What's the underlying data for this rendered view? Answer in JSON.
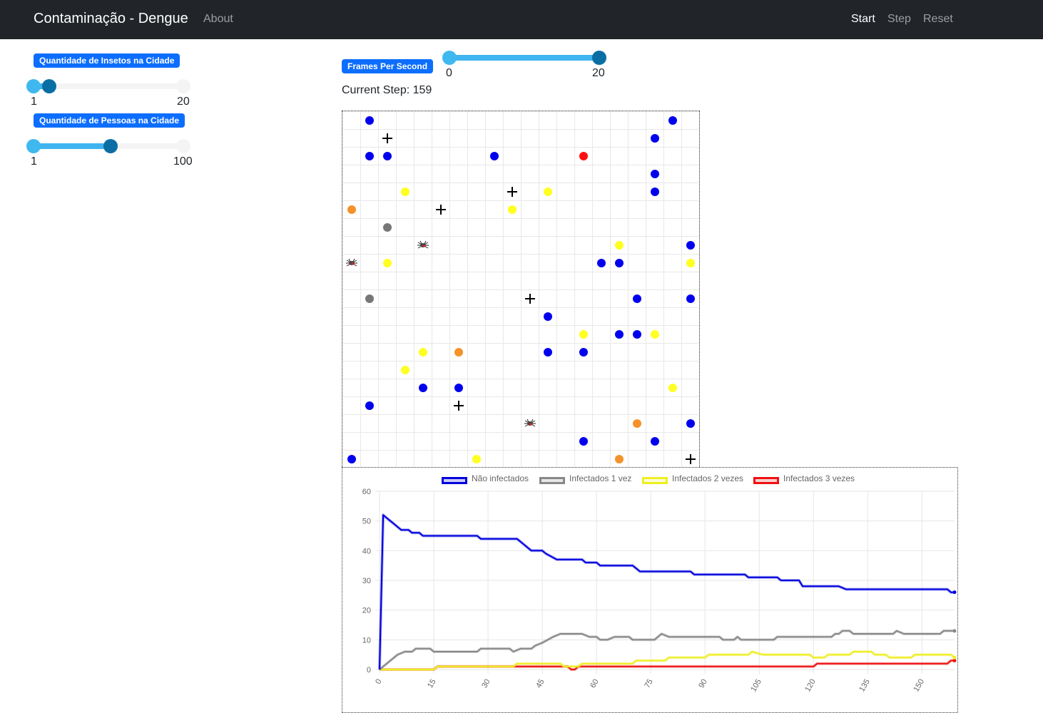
{
  "navbar": {
    "brand": "Contaminação - Dengue",
    "about": "About",
    "start": "Start",
    "step": "Step",
    "reset": "Reset"
  },
  "controls": {
    "insects": {
      "label": "Quantidade de Insetos na Cidade",
      "min": "1",
      "max": "20",
      "value": 2
    },
    "people": {
      "label": "Quantidade de Pessoas na Cidade",
      "min": "1",
      "max": "100",
      "value": 55
    },
    "fps": {
      "label": "Frames Per Second",
      "min": "0",
      "max": "20",
      "value_low": 0,
      "value_high": 20
    }
  },
  "status": {
    "current_step": "Current Step: 159"
  },
  "colors": {
    "healthy": "#0000ee",
    "infected1": "#777777",
    "infected2": "#ffff22",
    "infected3": "#ff1111",
    "recovered": "#f5922a",
    "accent": "#0d6efd"
  },
  "grid": {
    "size": 20,
    "people": [
      {
        "c": 1,
        "r": 0,
        "s": "healthy"
      },
      {
        "c": 18,
        "r": 0,
        "s": "healthy"
      },
      {
        "c": 17,
        "r": 1,
        "s": "healthy"
      },
      {
        "c": 1,
        "r": 2,
        "s": "healthy"
      },
      {
        "c": 2,
        "r": 2,
        "s": "healthy"
      },
      {
        "c": 8,
        "r": 2,
        "s": "healthy"
      },
      {
        "c": 13,
        "r": 2,
        "s": "infected3"
      },
      {
        "c": 17,
        "r": 3,
        "s": "healthy"
      },
      {
        "c": 3,
        "r": 4,
        "s": "infected2"
      },
      {
        "c": 11,
        "r": 4,
        "s": "infected2"
      },
      {
        "c": 17,
        "r": 4,
        "s": "healthy"
      },
      {
        "c": 0,
        "r": 5,
        "s": "recovered"
      },
      {
        "c": 9,
        "r": 5,
        "s": "infected2"
      },
      {
        "c": 2,
        "r": 6,
        "s": "infected1"
      },
      {
        "c": 15,
        "r": 7,
        "s": "infected2"
      },
      {
        "c": 19,
        "r": 7,
        "s": "healthy"
      },
      {
        "c": 2,
        "r": 8,
        "s": "infected2"
      },
      {
        "c": 14,
        "r": 8,
        "s": "healthy"
      },
      {
        "c": 15,
        "r": 8,
        "s": "healthy"
      },
      {
        "c": 19,
        "r": 8,
        "s": "infected2"
      },
      {
        "c": 1,
        "r": 10,
        "s": "infected1"
      },
      {
        "c": 16,
        "r": 10,
        "s": "healthy"
      },
      {
        "c": 19,
        "r": 10,
        "s": "healthy"
      },
      {
        "c": 11,
        "r": 11,
        "s": "healthy"
      },
      {
        "c": 13,
        "r": 12,
        "s": "infected2"
      },
      {
        "c": 15,
        "r": 12,
        "s": "healthy"
      },
      {
        "c": 16,
        "r": 12,
        "s": "healthy"
      },
      {
        "c": 17,
        "r": 12,
        "s": "infected2"
      },
      {
        "c": 4,
        "r": 13,
        "s": "infected2"
      },
      {
        "c": 6,
        "r": 13,
        "s": "recovered"
      },
      {
        "c": 11,
        "r": 13,
        "s": "healthy"
      },
      {
        "c": 13,
        "r": 13,
        "s": "healthy"
      },
      {
        "c": 3,
        "r": 14,
        "s": "infected2"
      },
      {
        "c": 4,
        "r": 15,
        "s": "healthy"
      },
      {
        "c": 6,
        "r": 15,
        "s": "healthy"
      },
      {
        "c": 18,
        "r": 15,
        "s": "infected2"
      },
      {
        "c": 1,
        "r": 16,
        "s": "healthy"
      },
      {
        "c": 16,
        "r": 17,
        "s": "recovered"
      },
      {
        "c": 19,
        "r": 17,
        "s": "healthy"
      },
      {
        "c": 13,
        "r": 18,
        "s": "healthy"
      },
      {
        "c": 17,
        "r": 18,
        "s": "healthy"
      },
      {
        "c": 0,
        "r": 19,
        "s": "healthy"
      },
      {
        "c": 7,
        "r": 19,
        "s": "infected2"
      },
      {
        "c": 15,
        "r": 19,
        "s": "recovered"
      }
    ],
    "crosses": [
      {
        "c": 2,
        "r": 1
      },
      {
        "c": 9,
        "r": 4
      },
      {
        "c": 5,
        "r": 5
      },
      {
        "c": 10,
        "r": 10
      },
      {
        "c": 6,
        "r": 16
      },
      {
        "c": 19,
        "r": 19
      }
    ],
    "insects": [
      {
        "c": 4,
        "r": 7
      },
      {
        "c": 0,
        "r": 8
      },
      {
        "c": 10,
        "r": 17
      }
    ]
  },
  "chart_data": {
    "type": "line",
    "title": "",
    "xlabel": "",
    "ylabel": "",
    "ylim": [
      0,
      60
    ],
    "xlim": [
      0,
      159
    ],
    "y_ticks": [
      "0",
      "10",
      "20",
      "30",
      "40",
      "50",
      "60"
    ],
    "x_ticks": [
      "0",
      "15",
      "30",
      "45",
      "60",
      "75",
      "90",
      "105",
      "120",
      "135",
      "150"
    ],
    "legend_position": "top",
    "series": [
      {
        "name": "Não infectados",
        "color": "#0000dd",
        "points": [
          [
            0,
            0
          ],
          [
            1,
            52
          ],
          [
            2,
            51
          ],
          [
            3,
            50
          ],
          [
            4,
            49
          ],
          [
            5,
            48
          ],
          [
            6,
            47
          ],
          [
            8,
            47
          ],
          [
            9,
            46
          ],
          [
            11,
            46
          ],
          [
            12,
            45
          ],
          [
            20,
            45
          ],
          [
            27,
            45
          ],
          [
            28,
            44
          ],
          [
            38,
            44
          ],
          [
            39,
            43
          ],
          [
            40,
            42
          ],
          [
            41,
            41
          ],
          [
            42,
            40
          ],
          [
            45,
            40
          ],
          [
            46,
            39
          ],
          [
            49,
            37
          ],
          [
            56,
            37
          ],
          [
            57,
            36
          ],
          [
            60,
            36
          ],
          [
            61,
            35
          ],
          [
            70,
            35
          ],
          [
            71,
            34
          ],
          [
            72,
            33
          ],
          [
            86,
            33
          ],
          [
            87,
            32
          ],
          [
            101,
            32
          ],
          [
            102,
            31
          ],
          [
            110,
            31
          ],
          [
            111,
            30
          ],
          [
            116,
            30
          ],
          [
            117,
            28
          ],
          [
            127,
            28
          ],
          [
            129,
            27
          ],
          [
            144,
            27
          ],
          [
            157,
            27
          ],
          [
            158,
            26
          ],
          [
            159,
            26
          ]
        ]
      },
      {
        "name": "Infectados 1 vez",
        "color": "#888888",
        "points": [
          [
            0,
            0
          ],
          [
            1,
            1
          ],
          [
            2,
            2
          ],
          [
            3,
            3
          ],
          [
            4,
            4
          ],
          [
            5,
            5
          ],
          [
            7,
            6
          ],
          [
            9,
            6
          ],
          [
            10,
            7
          ],
          [
            14,
            7
          ],
          [
            15,
            6
          ],
          [
            27,
            6
          ],
          [
            28,
            7
          ],
          [
            36,
            7
          ],
          [
            37,
            6
          ],
          [
            39,
            7
          ],
          [
            42,
            7
          ],
          [
            43,
            8
          ],
          [
            45,
            9
          ],
          [
            48,
            11
          ],
          [
            50,
            12
          ],
          [
            56,
            12
          ],
          [
            58,
            11
          ],
          [
            60,
            11
          ],
          [
            61,
            10
          ],
          [
            63,
            10
          ],
          [
            65,
            11
          ],
          [
            69,
            11
          ],
          [
            70,
            10
          ],
          [
            76,
            10
          ],
          [
            78,
            12
          ],
          [
            80,
            11
          ],
          [
            94,
            11
          ],
          [
            95,
            10
          ],
          [
            98,
            10
          ],
          [
            99,
            11
          ],
          [
            100,
            10
          ],
          [
            109,
            10
          ],
          [
            110,
            11
          ],
          [
            125,
            11
          ],
          [
            126,
            12
          ],
          [
            127,
            12
          ],
          [
            128,
            13
          ],
          [
            130,
            13
          ],
          [
            131,
            12
          ],
          [
            142,
            12
          ],
          [
            143,
            13
          ],
          [
            145,
            12
          ],
          [
            155,
            12
          ],
          [
            156,
            13
          ],
          [
            159,
            13
          ]
        ]
      },
      {
        "name": "Infectados 2 vezes",
        "color": "#eeee22",
        "points": [
          [
            0,
            0
          ],
          [
            15,
            0
          ],
          [
            16,
            1
          ],
          [
            37,
            1
          ],
          [
            38,
            2
          ],
          [
            50,
            2
          ],
          [
            51,
            1
          ],
          [
            55,
            1
          ],
          [
            56,
            2
          ],
          [
            70,
            2
          ],
          [
            71,
            3
          ],
          [
            79,
            3
          ],
          [
            80,
            4
          ],
          [
            90,
            4
          ],
          [
            91,
            5
          ],
          [
            102,
            5
          ],
          [
            103,
            6
          ],
          [
            106,
            5
          ],
          [
            119,
            5
          ],
          [
            120,
            4
          ],
          [
            123,
            4
          ],
          [
            124,
            5
          ],
          [
            130,
            5
          ],
          [
            131,
            6
          ],
          [
            136,
            6
          ],
          [
            137,
            5
          ],
          [
            140,
            5
          ],
          [
            141,
            4
          ],
          [
            147,
            4
          ],
          [
            148,
            5
          ],
          [
            158,
            5
          ],
          [
            159,
            4
          ]
        ]
      },
      {
        "name": "Infectados 3 vezes",
        "color": "#ee1111",
        "points": [
          [
            0,
            0
          ],
          [
            15,
            0
          ],
          [
            16,
            1
          ],
          [
            52,
            1
          ],
          [
            53,
            0
          ],
          [
            54,
            0
          ],
          [
            55,
            1
          ],
          [
            75,
            1
          ],
          [
            76,
            1
          ],
          [
            120,
            1
          ],
          [
            121,
            2
          ],
          [
            157,
            2
          ],
          [
            158,
            3
          ],
          [
            159,
            3
          ]
        ]
      }
    ]
  }
}
